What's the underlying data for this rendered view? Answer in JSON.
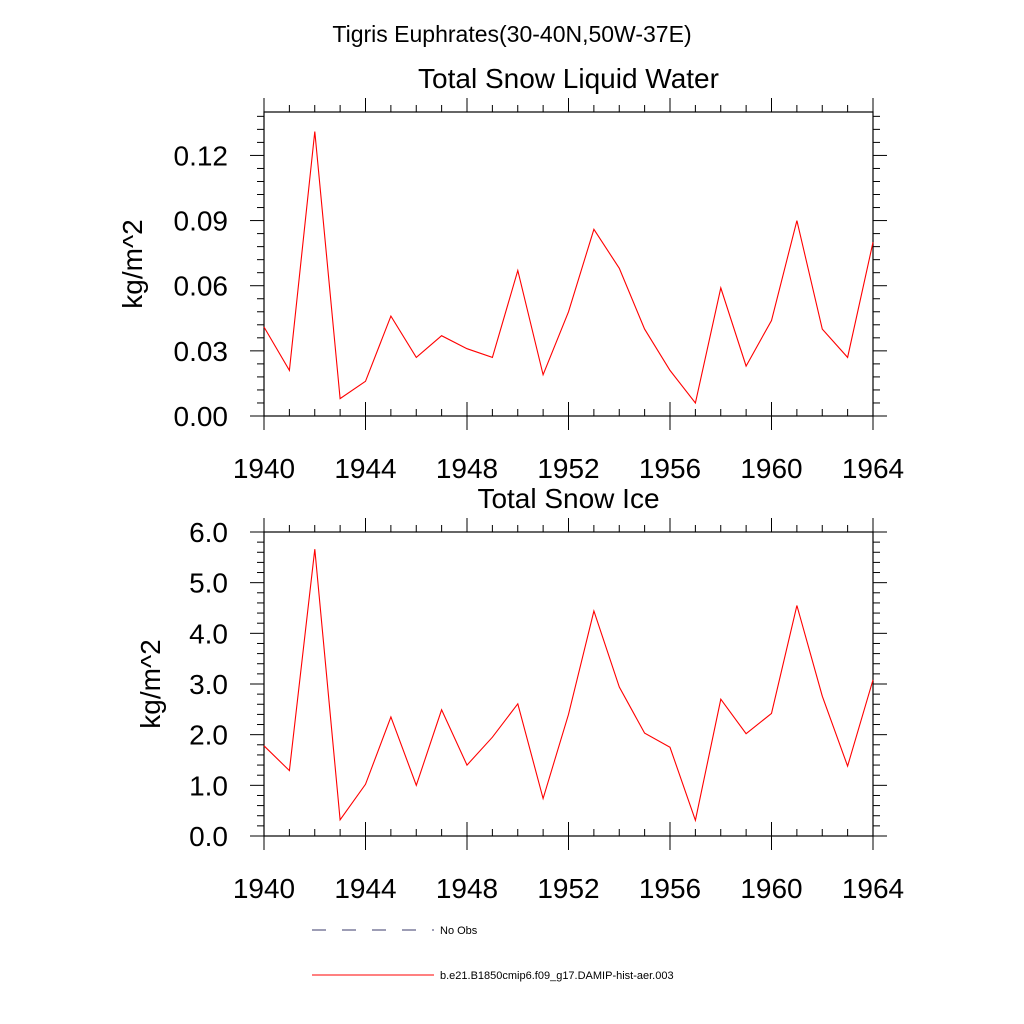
{
  "figure_title": "Tigris Euphrates(30-40N,50W-37E)",
  "colors": {
    "model_line": "#ff0000",
    "obs_line": "#3b3b6b",
    "axis": "#000000"
  },
  "legend": [
    {
      "label": "No Obs",
      "style": "dashed"
    },
    {
      "label": "b.e21.B1850cmip6.f09_g17.DAMIP-hist-aer.003",
      "style": "solid"
    }
  ],
  "chart_data": [
    {
      "type": "line",
      "title": "Total Snow Liquid Water",
      "xlabel": "",
      "ylabel": "kg/m^2",
      "xlim": [
        1940,
        1964
      ],
      "ylim": [
        0,
        0.14
      ],
      "x_ticks": [
        1940,
        1944,
        1948,
        1952,
        1956,
        1960,
        1964
      ],
      "y_ticks": [
        0,
        0.03,
        0.06,
        0.09,
        0.12
      ],
      "y_tick_labels": [
        "0.00",
        "0.03",
        "0.06",
        "0.09",
        "0.12"
      ],
      "x": [
        1940,
        1941,
        1942,
        1943,
        1944,
        1945,
        1946,
        1947,
        1948,
        1949,
        1950,
        1951,
        1952,
        1953,
        1954,
        1955,
        1956,
        1957,
        1958,
        1959,
        1960,
        1961,
        1962,
        1963,
        1964
      ],
      "series": [
        {
          "name": "b.e21.B1850cmip6.f09_g17.DAMIP-hist-aer.003",
          "values": [
            0.041,
            0.021,
            0.131,
            0.008,
            0.016,
            0.046,
            0.027,
            0.037,
            0.031,
            0.027,
            0.067,
            0.019,
            0.048,
            0.086,
            0.068,
            0.04,
            0.021,
            0.006,
            0.059,
            0.023,
            0.044,
            0.09,
            0.04,
            0.027,
            0.08
          ]
        }
      ]
    },
    {
      "type": "line",
      "title": "Total Snow Ice",
      "xlabel": "",
      "ylabel": "kg/m^2",
      "xlim": [
        1940,
        1964
      ],
      "ylim": [
        0,
        6.0
      ],
      "x_ticks": [
        1940,
        1944,
        1948,
        1952,
        1956,
        1960,
        1964
      ],
      "y_ticks": [
        0,
        1,
        2,
        3,
        4,
        5,
        6
      ],
      "y_tick_labels": [
        "0.0",
        "1.0",
        "2.0",
        "3.0",
        "4.0",
        "5.0",
        "6.0"
      ],
      "x": [
        1940,
        1941,
        1942,
        1943,
        1944,
        1945,
        1946,
        1947,
        1948,
        1949,
        1950,
        1951,
        1952,
        1953,
        1954,
        1955,
        1956,
        1957,
        1958,
        1959,
        1960,
        1961,
        1962,
        1963,
        1964
      ],
      "series": [
        {
          "name": "b.e21.B1850cmip6.f09_g17.DAMIP-hist-aer.003",
          "values": [
            1.78,
            1.29,
            5.66,
            0.32,
            1.02,
            2.35,
            1.0,
            2.49,
            1.4,
            1.95,
            2.61,
            0.74,
            2.4,
            4.44,
            2.94,
            2.03,
            1.75,
            0.31,
            2.7,
            2.02,
            2.42,
            4.55,
            2.76,
            1.38,
            3.08
          ]
        }
      ]
    }
  ]
}
